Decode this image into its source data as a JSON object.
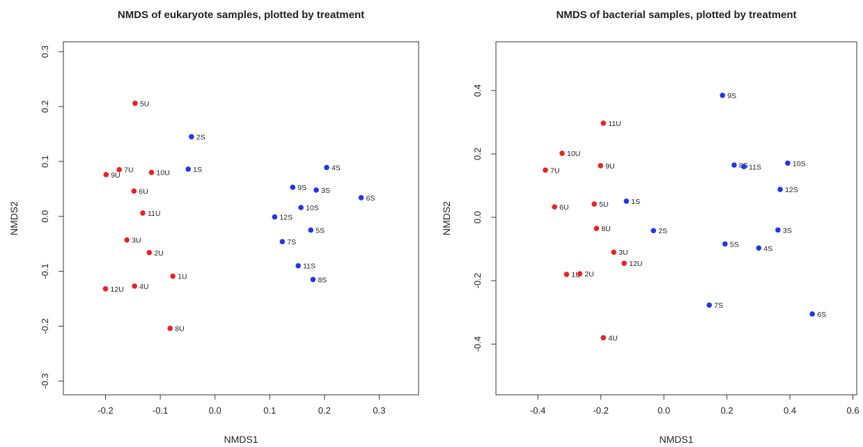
{
  "chart_data": [
    {
      "type": "scatter",
      "title": "NMDS of eukaryote samples, plotted by treatment",
      "x_label": "NMDS1",
      "y_label": "NMDS2",
      "xlim": [
        -0.277,
        0.372
      ],
      "ylim": [
        -0.325,
        0.318
      ],
      "xticks": [
        -0.2,
        -0.1,
        {
          "value": 0,
          "label": "0.0"
        },
        0.1,
        0.2,
        0.3
      ],
      "yticks": [
        -0.3,
        -0.2,
        -0.1,
        {
          "value": 0,
          "label": "0.0"
        },
        0.1,
        0.2,
        0.3
      ],
      "series": [
        {
          "color": "#ee2020",
          "labels": [
            "5U",
            "10U",
            "7U",
            "9U",
            "6U",
            "11U",
            "3U",
            "2U",
            "1U",
            "4U",
            "12U",
            "8U"
          ],
          "x": [
            -0.146,
            -0.116,
            -0.175,
            -0.199,
            -0.148,
            -0.132,
            -0.161,
            -0.12,
            -0.077,
            -0.147,
            -0.2,
            -0.082
          ],
          "values": [
            0.206,
            0.08,
            0.085,
            0.076,
            0.046,
            0.006,
            -0.043,
            -0.066,
            -0.109,
            -0.127,
            -0.132,
            -0.204
          ]
        },
        {
          "color": "#2036ee",
          "labels": [
            "2S",
            "1S",
            "4S",
            "9S",
            "3S",
            "6S",
            "10S",
            "12S",
            "5S",
            "7S",
            "11S",
            "8S"
          ],
          "x": [
            -0.043,
            -0.049,
            0.204,
            0.142,
            0.185,
            0.267,
            0.157,
            0.109,
            0.175,
            0.123,
            0.152,
            0.179
          ],
          "values": [
            0.145,
            0.086,
            0.089,
            0.053,
            0.048,
            0.034,
            0.016,
            -0.001,
            -0.025,
            -0.046,
            -0.09,
            -0.115
          ]
        }
      ]
    },
    {
      "type": "scatter",
      "title": "NMDS of bacterial samples, plotted by treatment",
      "x_label": "NMDS1",
      "y_label": "NMDS2",
      "xlim": [
        -0.533,
        0.612
      ],
      "ylim": [
        -0.56,
        0.554
      ],
      "xticks": [
        -0.4,
        -0.2,
        {
          "value": 0,
          "label": "0.0"
        },
        0.2,
        0.4,
        0.6
      ],
      "yticks": [
        -0.4,
        -0.2,
        {
          "value": 0,
          "label": "0.0"
        },
        0.2,
        0.4
      ],
      "series": [
        {
          "color": "#ee2020",
          "labels": [
            "11U",
            "10U",
            "7U",
            "9U",
            "6U",
            "5U",
            "8U",
            "3U",
            "12U",
            "1U",
            "2U",
            "4U"
          ],
          "x": [
            -0.192,
            -0.323,
            -0.376,
            -0.201,
            -0.347,
            -0.221,
            -0.214,
            -0.159,
            -0.126,
            -0.309,
            -0.267,
            -0.192
          ],
          "values": [
            0.297,
            0.202,
            0.149,
            0.163,
            0.033,
            0.042,
            -0.035,
            -0.11,
            -0.145,
            -0.18,
            -0.178,
            -0.38
          ]
        },
        {
          "color": "#2036ee",
          "labels": [
            "9S",
            "8S",
            "11S",
            "10S",
            "12S",
            "1S",
            "2S",
            "3S",
            "5S",
            "4S",
            "7S",
            "6S"
          ],
          "x": [
            0.186,
            0.223,
            0.254,
            0.393,
            0.369,
            -0.119,
            -0.033,
            0.362,
            0.194,
            0.301,
            0.144,
            0.471
          ],
          "values": [
            0.385,
            0.165,
            0.16,
            0.171,
            0.088,
            0.051,
            -0.042,
            -0.04,
            -0.084,
            -0.097,
            -0.277,
            -0.305
          ]
        }
      ]
    }
  ]
}
